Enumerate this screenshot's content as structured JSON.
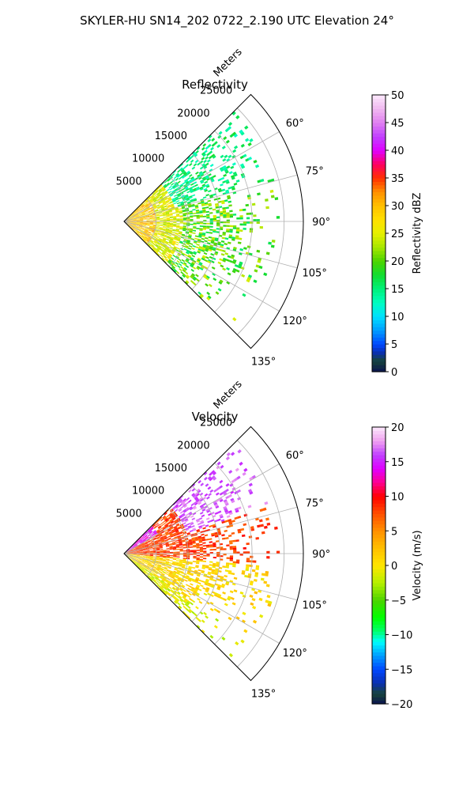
{
  "figure": {
    "title": "SKYLER-HU  SN14_202  0722_2.190 UTC Elevation 24°"
  },
  "colors": {
    "grid": "#b0b0b0",
    "frame": "#000000",
    "background": "#ffffff"
  },
  "chart_data": [
    {
      "type": "heatmap",
      "projection": "polar-sector",
      "title": "Reflectivity",
      "radial_label": "Meters",
      "radial_ticks": [
        "5000",
        "10000",
        "15000",
        "20000",
        "25000"
      ],
      "radial_tick_values": [
        5000,
        10000,
        15000,
        20000,
        25000
      ],
      "radial_range": [
        0,
        28000
      ],
      "angle_range_deg": [
        45,
        135
      ],
      "angle_ticks": [
        "60°",
        "75°",
        "90°",
        "105°",
        "120°",
        "135°"
      ],
      "angle_tick_values": [
        60,
        75,
        90,
        105,
        120,
        135
      ],
      "grid": true,
      "colorbar": {
        "label": "Reflectivity dBZ",
        "range": [
          0,
          50
        ],
        "ticks": [
          "0",
          "5",
          "10",
          "15",
          "20",
          "25",
          "30",
          "35",
          "40",
          "45",
          "50"
        ],
        "tick_values": [
          0,
          5,
          10,
          15,
          20,
          25,
          30,
          35,
          40,
          45,
          50
        ],
        "stops": [
          [
            0,
            "#0b1250"
          ],
          [
            2,
            "#17453a"
          ],
          [
            3.5,
            "#0a2fb0"
          ],
          [
            5,
            "#0047ff"
          ],
          [
            7.5,
            "#009dff"
          ],
          [
            10,
            "#00e0ff"
          ],
          [
            12.5,
            "#00ffc0"
          ],
          [
            15,
            "#00f07a"
          ],
          [
            17.5,
            "#12dd30"
          ],
          [
            20,
            "#4cd400"
          ],
          [
            22.5,
            "#a6e600"
          ],
          [
            25,
            "#e6f000"
          ],
          [
            27.5,
            "#ffe000"
          ],
          [
            30,
            "#ffc000"
          ],
          [
            32.5,
            "#ff9000"
          ],
          [
            35,
            "#ff3000"
          ],
          [
            37.5,
            "#ff0060"
          ],
          [
            40,
            "#e000ff"
          ],
          [
            42.5,
            "#c040ff"
          ],
          [
            45,
            "#e080f0"
          ],
          [
            47.5,
            "#f0b8f0"
          ],
          [
            50,
            "#fbe8fb"
          ]
        ]
      },
      "field": {
        "max_range_m": 24000,
        "mean_value": 20,
        "value_spread": 5,
        "near_range_value": 33,
        "echo_density": 0.55
      }
    },
    {
      "type": "heatmap",
      "projection": "polar-sector",
      "title": "Velocity",
      "radial_label": "Meters",
      "radial_ticks": [
        "5000",
        "10000",
        "15000",
        "20000",
        "25000"
      ],
      "radial_tick_values": [
        5000,
        10000,
        15000,
        20000,
        25000
      ],
      "radial_range": [
        0,
        28000
      ],
      "angle_range_deg": [
        45,
        135
      ],
      "angle_ticks": [
        "60°",
        "75°",
        "90°",
        "105°",
        "120°",
        "135°"
      ],
      "angle_tick_values": [
        60,
        75,
        90,
        105,
        120,
        135
      ],
      "grid": true,
      "colorbar": {
        "label": "Velocity (m/s)",
        "range": [
          -20,
          20
        ],
        "ticks": [
          "−20",
          "−15",
          "−10",
          "−5",
          "0",
          "5",
          "10",
          "15",
          "20"
        ],
        "tick_values": [
          -20,
          -15,
          -10,
          -5,
          0,
          5,
          10,
          15,
          20
        ],
        "stops": [
          [
            -20,
            "#0b1250"
          ],
          [
            -18.5,
            "#17453a"
          ],
          [
            -17,
            "#0a2fb0"
          ],
          [
            -15,
            "#0047ff"
          ],
          [
            -13,
            "#009dff"
          ],
          [
            -11,
            "#00ffff"
          ],
          [
            -9.5,
            "#00ff70"
          ],
          [
            -7.5,
            "#00ff00"
          ],
          [
            -5,
            "#4cd400"
          ],
          [
            -2.5,
            "#b5f000"
          ],
          [
            0,
            "#ffe600"
          ],
          [
            2.5,
            "#ffc000"
          ],
          [
            5,
            "#ff9000"
          ],
          [
            7.5,
            "#ff5000"
          ],
          [
            10,
            "#ff0000"
          ],
          [
            12,
            "#ff0090"
          ],
          [
            14,
            "#e000ff"
          ],
          [
            16,
            "#c040ff"
          ],
          [
            18,
            "#f0a0f0"
          ],
          [
            20,
            "#fbe8fb"
          ]
        ]
      },
      "field": {
        "max_range_m": 24000,
        "north_value": 10,
        "south_value": 3,
        "far_north_value": 15,
        "edge_value": -3,
        "echo_density": 0.55
      }
    }
  ]
}
